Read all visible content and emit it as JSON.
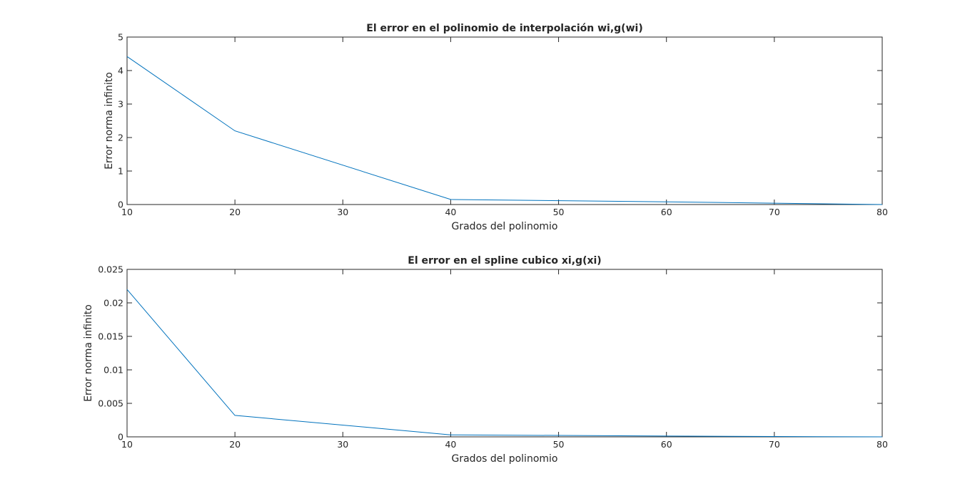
{
  "chart_data": [
    {
      "type": "line",
      "title": "El error en el polinomio de interpolación wi,g(wi)",
      "xlabel": "Grados del polinomio",
      "ylabel": "Error norma infinito",
      "xlim": [
        10,
        80
      ],
      "ylim": [
        0,
        5
      ],
      "xticks": [
        "10",
        "20",
        "30",
        "40",
        "50",
        "60",
        "70",
        "80"
      ],
      "yticks": [
        "0",
        "1",
        "2",
        "3",
        "4",
        "5"
      ],
      "grid": false,
      "color": "#0072bd",
      "x": [
        10,
        20,
        40,
        60,
        70,
        80
      ],
      "y": [
        4.42,
        2.2,
        0.15,
        0.08,
        0.04,
        0.0
      ]
    },
    {
      "type": "line",
      "title": "El error en el spline cubico xi,g(xi)",
      "xlabel": "Grados del polinomio",
      "ylabel": "Error norma infinito",
      "xlim": [
        10,
        80
      ],
      "ylim": [
        0,
        0.025
      ],
      "xticks": [
        "10",
        "20",
        "30",
        "40",
        "50",
        "60",
        "70",
        "80"
      ],
      "yticks": [
        "0",
        "0.005",
        "0.01",
        "0.015",
        "0.02",
        "0.025"
      ],
      "grid": false,
      "color": "#0072bd",
      "x": [
        10,
        20,
        40,
        60,
        70,
        80
      ],
      "y": [
        0.022,
        0.0032,
        0.0003,
        0.00012,
        5e-05,
        0.0
      ]
    }
  ]
}
